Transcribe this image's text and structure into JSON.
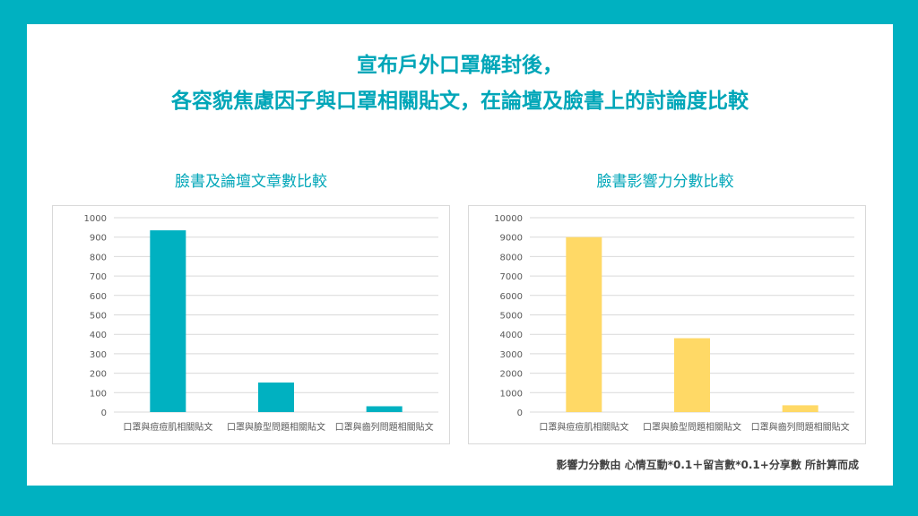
{
  "title_line1": "宣布戶外口罩解封後，",
  "title_line2": "各容貌焦慮因子與口罩相關貼文，在論壇及臉書上的討論度比較",
  "footnote": "影響力分數由 心情互動*0.1＋留言數*0.1+分享數 所計算而成",
  "colors": {
    "frame": "#00B1C1",
    "chart1_bar": "#00B1C1",
    "chart2_bar": "#FFD966",
    "title": "#00A6B8"
  },
  "chart_data": [
    {
      "type": "bar",
      "title": "臉書及論壇文章數比較",
      "categories": [
        "口罩與痘痘肌相關貼文",
        "口罩與臉型問題相關貼文",
        "口罩與齒列問題相關貼文"
      ],
      "values": [
        935,
        152,
        30
      ],
      "ylim": [
        0,
        1000
      ],
      "yticks": [
        0,
        100,
        200,
        300,
        400,
        500,
        600,
        700,
        800,
        900,
        1000
      ],
      "grid": true,
      "xlabel": "",
      "ylabel": ""
    },
    {
      "type": "bar",
      "title": "臉書影響力分數比較",
      "categories": [
        "口罩與痘痘肌相關貼文",
        "口罩與臉型問題相關貼文",
        "口罩與齒列問題相關貼文"
      ],
      "values": [
        9000,
        3800,
        350
      ],
      "ylim": [
        0,
        10000
      ],
      "yticks": [
        0,
        1000,
        2000,
        3000,
        4000,
        5000,
        6000,
        7000,
        8000,
        9000,
        10000
      ],
      "grid": true,
      "xlabel": "",
      "ylabel": ""
    }
  ]
}
